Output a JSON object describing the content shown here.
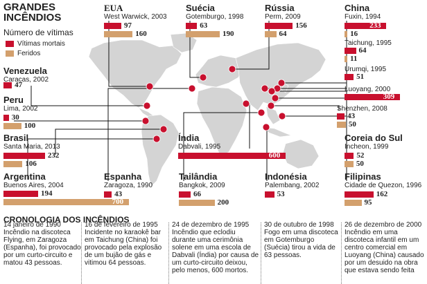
{
  "title": "GRANDES INCÊNDIOS",
  "subtitle": "Número de vítimas",
  "legend": [
    {
      "label": "Vítimas mortais",
      "color": "#c8102e"
    },
    {
      "label": "Feridos",
      "color": "#d3a06d"
    }
  ],
  "chart_data": {
    "type": "bar",
    "series": [
      {
        "name": "Vítimas mortais",
        "color": "#c8102e"
      },
      {
        "name": "Feridos",
        "color": "#d3a06d"
      }
    ],
    "entries": [
      {
        "id": "eua",
        "country": "EUA",
        "place": "West Warwick, 2003",
        "deaths": 97,
        "injured": 160
      },
      {
        "id": "suecia",
        "country": "Suécia",
        "place": "Gotemburgo, 1998",
        "deaths": 63,
        "injured": 190
      },
      {
        "id": "russia",
        "country": "Rússia",
        "place": "Perm, 2009",
        "deaths": 156,
        "injured": 64
      },
      {
        "id": "china",
        "country": "China",
        "place": "Fuxin, 1994",
        "deaths": 233,
        "injured": 16
      },
      {
        "id": "taichung",
        "country": "",
        "place": "Taichung, 1995",
        "deaths": 64,
        "injured": 11
      },
      {
        "id": "urumqi",
        "country": "",
        "place": "Urumqi, 1995",
        "deaths": 51,
        "injured": null
      },
      {
        "id": "luoyang",
        "country": "",
        "place": "Luoyang, 2000",
        "deaths": 309,
        "injured": null
      },
      {
        "id": "shenzhen",
        "country": "",
        "place": "Shenzhen, 2008",
        "deaths": 43,
        "injured": 50
      },
      {
        "id": "venezuela",
        "country": "Venezuela",
        "place": "Caracas, 2002",
        "deaths": 47,
        "injured": null
      },
      {
        "id": "peru",
        "country": "Peru",
        "place": "Lima, 2002",
        "deaths": 30,
        "injured": 100
      },
      {
        "id": "brasil",
        "country": "Brasil",
        "place": "Santa Maria, 2013",
        "deaths": 232,
        "injured": 106
      },
      {
        "id": "argentina",
        "country": "Argentina",
        "place": "Buenos Aires, 2004",
        "deaths": 194,
        "injured": 700
      },
      {
        "id": "espanha",
        "country": "Espanha",
        "place": "Zaragoza, 1990",
        "deaths": 43,
        "injured": null
      },
      {
        "id": "india",
        "country": "Índia",
        "place": "Dabvali, 1995",
        "deaths": 600,
        "injured": null
      },
      {
        "id": "tailandia",
        "country": "Tailândia",
        "place": "Bangkok, 2009",
        "deaths": 66,
        "injured": 200
      },
      {
        "id": "indonesia",
        "country": "Indonésia",
        "place": "Palembang, 2002",
        "deaths": 53,
        "injured": null
      },
      {
        "id": "coreia",
        "country": "Coreia do Sul",
        "place": "Incheon, 1999",
        "deaths": 52,
        "injured": 50
      },
      {
        "id": "filipinas",
        "country": "Filipinas",
        "place": "Cidade de Quezon, 1996",
        "deaths": 162,
        "injured": 95
      }
    ]
  },
  "chronology": {
    "title": "CRONOLOGIA DOS INCÊNDIOS",
    "items": [
      {
        "date": "14 janeiro de 1990",
        "text": "Incêndio na discoteca Flying, em Zaragoza (Espanha), foi provocado por um curto-circuito e matou 43 pessoas."
      },
      {
        "date": "16 de fevereiro de 1995",
        "text": "Incidente no karaokê bar em Taichung (China) foi provocado pela explosão de um bujão de gás e vitimou 64 pessoas."
      },
      {
        "date": "24 de dezembro de 1995",
        "text": "Incêndio que eclodiu durante uma cerimônia solene em uma escola de Dabvali (Índia) por causa de um curto-circuito deixou, pelo menos, 600 mortos."
      },
      {
        "date": "30 de outubro de 1998",
        "text": "Fogo em uma discoteca em Gotemburgo (Suécia) tirou a vida de 63 pessoas."
      },
      {
        "date": "26 de dezembro de 2000",
        "text": "Incêndio em uma discoteca infantil em um centro comercial em Luoyang (China) causado por um desuido na obra que estava sendo feita"
      }
    ]
  }
}
